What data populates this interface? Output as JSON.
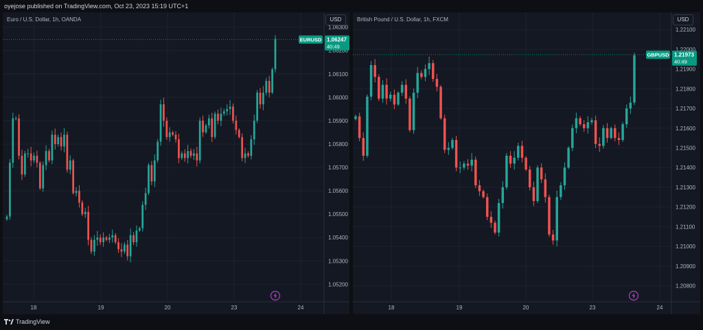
{
  "header": {
    "published_by": "oyejose published on TradingView.com, Oct 23, 2023 15:19 UTC+1"
  },
  "footer": {
    "brand": "TradingView"
  },
  "colors": {
    "up": "#26a69a",
    "down": "#ef5350",
    "background": "#141822",
    "grid": "#1e2230",
    "accent": "#089981",
    "lightning": "#b13fc4"
  },
  "chart_data": [
    {
      "type": "candlestick",
      "title": "Euro / U.S. Dollar, 1h, OANDA",
      "currency_button": "USD",
      "x_ticks": [
        "18",
        "19",
        "20",
        "23",
        "24"
      ],
      "y_ticks": [
        "1.06300",
        "1.06200",
        "1.06100",
        "1.06000",
        "1.05900",
        "1.05800",
        "1.05700",
        "1.05600",
        "1.05500",
        "1.05400",
        "1.05300",
        "1.05200"
      ],
      "ylim": [
        1.0516,
        1.0634
      ],
      "last_price_label": {
        "symbol": "EURUSD",
        "price": "1.06247",
        "countdown": "40:49",
        "value": 1.06247
      },
      "icon": "lightning-icon",
      "candles_close": [
        1.0549,
        1.0572,
        1.0591,
        1.0591,
        1.0575,
        1.0567,
        1.0576,
        1.0576,
        1.0573,
        1.0575,
        1.0572,
        1.0561,
        1.0571,
        1.0577,
        1.0573,
        1.0584,
        1.058,
        1.0583,
        1.0579,
        1.0584,
        1.0569,
        1.0573,
        1.0559,
        1.056,
        1.0555,
        1.055,
        1.0551,
        1.0539,
        1.0534,
        1.0539,
        1.054,
        1.0538,
        1.054,
        1.0539,
        1.054,
        1.0541,
        1.0538,
        1.0535,
        1.0534,
        1.0537,
        1.0532,
        1.0541,
        1.0538,
        1.0543,
        1.0544,
        1.0554,
        1.0559,
        1.0571,
        1.0564,
        1.0573,
        1.0581,
        1.0597,
        1.059,
        1.0583,
        1.0585,
        1.0584,
        1.0582,
        1.0574,
        1.0576,
        1.0574,
        1.0577,
        1.0575,
        1.0576,
        1.0573,
        1.059,
        1.0585,
        1.0588,
        1.0591,
        1.0583,
        1.0593,
        1.059,
        1.0593,
        1.0594,
        1.0595,
        1.0596,
        1.059,
        1.0586,
        1.0583,
        1.0574,
        1.0576,
        1.0575,
        1.0582,
        1.059,
        1.0602,
        1.0597,
        1.0602,
        1.0607,
        1.0602,
        1.0612,
        1.0625
      ]
    },
    {
      "type": "candlestick",
      "title": "British Pound / U.S. Dollar, 1h, FXCM",
      "currency_button": "USD",
      "x_ticks": [
        "18",
        "19",
        "20",
        "23",
        "24"
      ],
      "y_ticks": [
        "1.22100",
        "1.22000",
        "1.21900",
        "1.21800",
        "1.21700",
        "1.21600",
        "1.21500",
        "1.21400",
        "1.21300",
        "1.21200",
        "1.21100",
        "1.21000",
        "1.20900",
        "1.20800"
      ],
      "ylim": [
        1.2076,
        1.2216
      ],
      "last_price_label": {
        "symbol": "GBPUSD",
        "price": "1.21973",
        "countdown": "40:49",
        "value": 1.21973
      },
      "icon": "lightning-icon",
      "candles_close": [
        1.2166,
        1.2155,
        1.2146,
        1.2176,
        1.2192,
        1.2186,
        1.2175,
        1.2182,
        1.2175,
        1.2177,
        1.2172,
        1.2178,
        1.2182,
        1.2175,
        1.2159,
        1.2178,
        1.2188,
        1.2186,
        1.219,
        1.2193,
        1.2185,
        1.2181,
        1.2165,
        1.2149,
        1.215,
        1.2154,
        1.214,
        1.214,
        1.2142,
        1.2141,
        1.2144,
        1.2131,
        1.2128,
        1.2125,
        1.2115,
        1.2112,
        1.2107,
        1.2122,
        1.213,
        1.2146,
        1.2142,
        1.2145,
        1.2151,
        1.2145,
        1.2139,
        1.213,
        1.2123,
        1.214,
        1.2134,
        1.2125,
        1.2106,
        1.2103,
        1.2125,
        1.2131,
        1.214,
        1.215,
        1.216,
        1.2165,
        1.2162,
        1.216,
        1.2163,
        1.2164,
        1.2152,
        1.2151,
        1.216,
        1.2155,
        1.216,
        1.2155,
        1.2154,
        1.2162,
        1.217,
        1.2173,
        1.2197
      ]
    }
  ]
}
